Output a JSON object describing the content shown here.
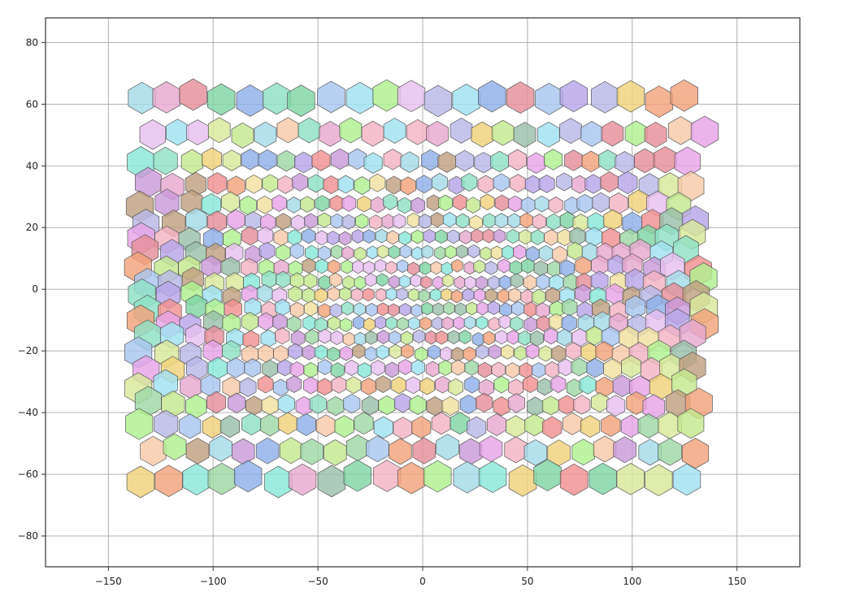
{
  "chart_data": {
    "type": "scatter",
    "subtype": "voronoi-hexagon-cells",
    "title": "",
    "xlabel": "",
    "ylabel": "",
    "xlim": [
      -180,
      180
    ],
    "ylim": [
      -90,
      88
    ],
    "x_ticks": [
      -150,
      -100,
      -50,
      0,
      50,
      100,
      150
    ],
    "y_ticks": [
      80,
      60,
      40,
      20,
      0,
      -20,
      -40,
      -60,
      -80
    ],
    "x_tick_labels": [
      "−150",
      "−100",
      "−50",
      "0",
      "50",
      "100",
      "150"
    ],
    "y_tick_labels": [
      "80",
      "60",
      "40",
      "20",
      "0",
      "−20",
      "−40",
      "−60",
      "−80"
    ],
    "grid": true,
    "legend": "none",
    "cell_region": {
      "x": [
        -136,
        134
      ],
      "y": [
        -64,
        64
      ]
    },
    "cell_spacing": {
      "center": 5.2,
      "edge": 13
    },
    "palette": [
      "#e6a3e6",
      "#9fd8a6",
      "#f2a27a",
      "#a8c6ef",
      "#c99ad9",
      "#8fe0c4",
      "#f3b3c4",
      "#c5e88f",
      "#f0d27a",
      "#8fb0e8",
      "#e58f9a",
      "#b7a6e8",
      "#7fd4a3",
      "#f7c9a8",
      "#a3dbe8",
      "#d8e89a",
      "#e8a8d0",
      "#9ac0a8",
      "#f0e0a0",
      "#b8b8e8",
      "#88e8d8",
      "#e8c0f0",
      "#c0a080",
      "#a0e0f0",
      "#f09090",
      "#b0f090"
    ]
  }
}
